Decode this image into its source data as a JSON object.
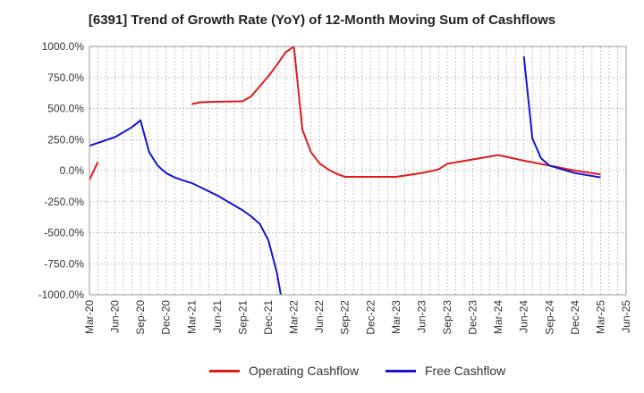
{
  "chart_data": {
    "type": "line",
    "title": "[6391]  Trend of Growth Rate (YoY) of 12-Month Moving Sum of Cashflows",
    "xlabel": "",
    "ylabel": "",
    "ylim": [
      -1000,
      1000
    ],
    "y_ticks": [
      "1000.0%",
      "750.0%",
      "500.0%",
      "250.0%",
      "0.0%",
      "-250.0%",
      "-500.0%",
      "-750.0%",
      "-1000.0%"
    ],
    "y_tick_values": [
      1000,
      750,
      500,
      250,
      0,
      -250,
      -500,
      -750,
      -1000
    ],
    "x_ticks": [
      "Mar-20",
      "Jun-20",
      "Sep-20",
      "Dec-20",
      "Mar-21",
      "Jun-21",
      "Sep-21",
      "Dec-21",
      "Mar-22",
      "Jun-22",
      "Sep-22",
      "Dec-22",
      "Mar-23",
      "Jun-23",
      "Sep-23",
      "Dec-23",
      "Mar-24",
      "Jun-24",
      "Sep-24",
      "Dec-24",
      "Mar-25",
      "Jun-25"
    ],
    "grid": true,
    "legend_position": "bottom",
    "series": [
      {
        "name": "Operating Cashflow",
        "color": "#e31a1c",
        "segments": [
          [
            [
              "2020-03",
              -75
            ],
            [
              "2020-04",
              70
            ]
          ],
          [
            [
              "2021-03",
              535
            ],
            [
              "2021-04",
              550
            ],
            [
              "2021-06",
              555
            ],
            [
              "2021-09",
              558
            ],
            [
              "2021-10",
              600
            ],
            [
              "2021-11",
              680
            ],
            [
              "2021-12",
              760
            ],
            [
              "2022-01",
              850
            ],
            [
              "2022-02",
              950
            ],
            [
              "2022-03",
              1000
            ],
            [
              "2022-04",
              330
            ],
            [
              "2022-05",
              150
            ],
            [
              "2022-06",
              60
            ],
            [
              "2022-07",
              10
            ],
            [
              "2022-08",
              -25
            ],
            [
              "2022-09",
              -50
            ],
            [
              "2022-12",
              -50
            ],
            [
              "2023-03",
              -50
            ],
            [
              "2023-06",
              -20
            ],
            [
              "2023-08",
              10
            ],
            [
              "2023-09",
              55
            ],
            [
              "2023-12",
              90
            ],
            [
              "2024-03",
              125
            ],
            [
              "2024-06",
              80
            ],
            [
              "2024-09",
              40
            ],
            [
              "2024-12",
              0
            ],
            [
              "2025-03",
              -30
            ]
          ]
        ]
      },
      {
        "name": "Free Cashflow",
        "color": "#1414d2",
        "segments": [
          [
            [
              "2020-03",
              200
            ],
            [
              "2020-06",
              270
            ],
            [
              "2020-08",
              350
            ],
            [
              "2020-09",
              405
            ],
            [
              "2020-10",
              150
            ],
            [
              "2020-11",
              40
            ],
            [
              "2020-12",
              -20
            ],
            [
              "2021-01",
              -55
            ],
            [
              "2021-02",
              -80
            ],
            [
              "2021-03",
              -100
            ],
            [
              "2021-06",
              -200
            ],
            [
              "2021-09",
              -320
            ],
            [
              "2021-10",
              -370
            ],
            [
              "2021-11",
              -430
            ],
            [
              "2021-12",
              -560
            ],
            [
              "2022-01",
              -820
            ],
            [
              "2022-01-15",
              -1000
            ]
          ],
          [
            [
              "2024-06",
              920
            ],
            [
              "2024-07",
              260
            ],
            [
              "2024-08",
              100
            ],
            [
              "2024-09",
              40
            ],
            [
              "2024-12",
              -20
            ],
            [
              "2025-03",
              -55
            ]
          ]
        ]
      }
    ]
  }
}
